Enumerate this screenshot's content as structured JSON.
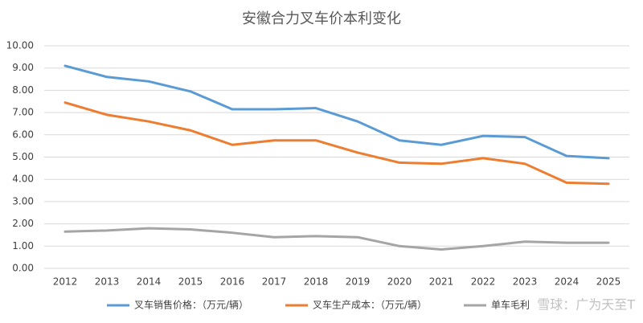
{
  "chart_data": {
    "type": "line",
    "title": "安徽合力叉车价本利变化",
    "categories": [
      "2012",
      "2013",
      "2014",
      "2015",
      "2016",
      "2017",
      "2018",
      "2019",
      "2020",
      "2021",
      "2022",
      "2023",
      "2024",
      "2025"
    ],
    "series": [
      {
        "name": "叉车销售价格：（万元/辆）",
        "color": "#5B9BD5",
        "values": [
          9.1,
          8.6,
          8.4,
          7.95,
          7.15,
          7.15,
          7.2,
          6.6,
          5.75,
          5.55,
          5.95,
          5.9,
          5.05,
          4.95
        ]
      },
      {
        "name": "叉车生产成本：（万元/辆）",
        "color": "#ED7D31",
        "values": [
          7.45,
          6.9,
          6.6,
          6.2,
          5.55,
          5.75,
          5.75,
          5.2,
          4.75,
          4.7,
          4.95,
          4.7,
          3.85,
          3.8
        ]
      },
      {
        "name": "单车毛利",
        "color": "#A5A5A5",
        "values": [
          1.65,
          1.7,
          1.8,
          1.75,
          1.6,
          1.4,
          1.45,
          1.4,
          1.0,
          0.85,
          1.0,
          1.2,
          1.15,
          1.15
        ]
      }
    ],
    "ylim": [
      0,
      10
    ],
    "yticks": [
      {
        "value": 0,
        "label": "0.00"
      },
      {
        "value": 1,
        "label": "1.00"
      },
      {
        "value": 2,
        "label": "2.00"
      },
      {
        "value": 3,
        "label": "3.00"
      },
      {
        "value": 4,
        "label": "4.00"
      },
      {
        "value": 5,
        "label": "5.00"
      },
      {
        "value": 6,
        "label": "6.00"
      },
      {
        "value": 7,
        "label": "7.00"
      },
      {
        "value": 8,
        "label": "8.00"
      },
      {
        "value": 9,
        "label": "9.00"
      },
      {
        "value": 10,
        "label": "10.00"
      }
    ],
    "grid": true,
    "legend": "bottom",
    "watermark": "雪球：广为天至T"
  }
}
